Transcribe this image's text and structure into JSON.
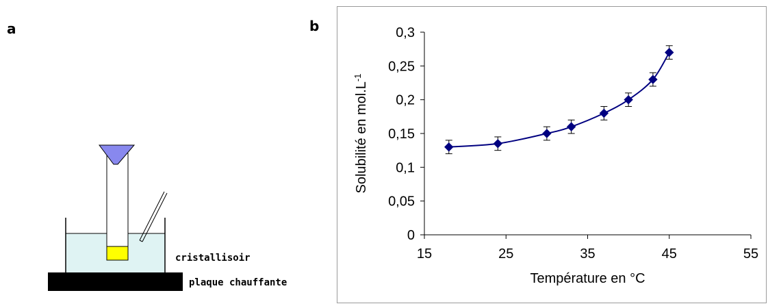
{
  "panel_labels": {
    "a": "a",
    "b": "b"
  },
  "apparatus": {
    "labels": {
      "vessel": "cristallisoir",
      "plate": "plaque chauffante"
    },
    "colors": {
      "water": "#dff3f3",
      "sample": "#ffff00",
      "funnel": "#8888ee",
      "plate": "#000000"
    }
  },
  "chart_data": {
    "type": "scatter",
    "title": "",
    "xlabel": "Température en °C",
    "ylabel": "Solubilité en mol.L",
    "ylabel_superscript": "-1",
    "xlim": [
      15,
      55
    ],
    "ylim": [
      0,
      0.3
    ],
    "x_ticks": [
      15,
      25,
      35,
      45,
      55
    ],
    "x_tick_labels": [
      "15",
      "25",
      "35",
      "45",
      "55"
    ],
    "y_ticks": [
      0,
      0.05,
      0.1,
      0.15,
      0.2,
      0.25,
      0.3
    ],
    "y_tick_labels": [
      "0",
      "0,05",
      "0,1",
      "0,15",
      "0,2",
      "0,25",
      "0,3"
    ],
    "grid": false,
    "legend": "none",
    "marker": "diamond",
    "line": "smooth",
    "color": "#000080",
    "series": [
      {
        "x": [
          18,
          24,
          30,
          33,
          37,
          40,
          43,
          45
        ],
        "y": [
          0.13,
          0.135,
          0.15,
          0.16,
          0.18,
          0.2,
          0.23,
          0.27
        ],
        "error": [
          0.01,
          0.01,
          0.01,
          0.01,
          0.01,
          0.01,
          0.01,
          0.01
        ]
      }
    ]
  }
}
